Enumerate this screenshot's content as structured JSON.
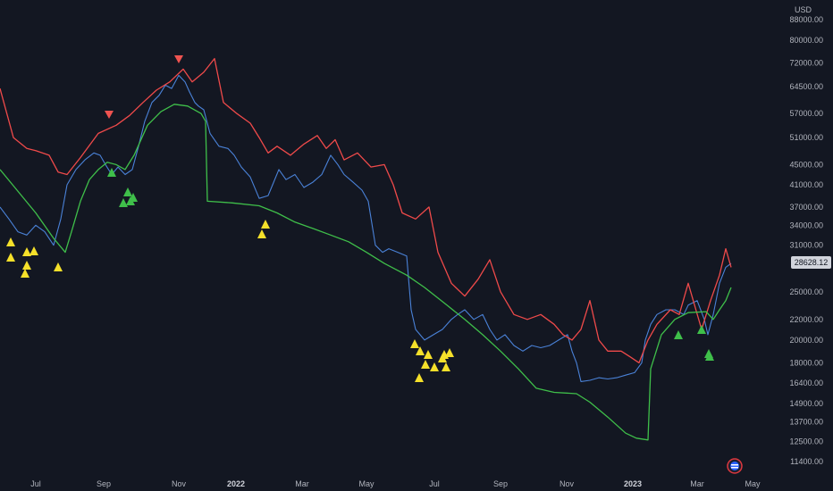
{
  "chart_data": {
    "type": "line",
    "currency": "USD",
    "last_price": "28628.12",
    "y_ticks": [
      "88000.00",
      "80000.00",
      "72000.00",
      "64500.00",
      "57000.00",
      "51000.00",
      "45000.00",
      "41000.00",
      "37000.00",
      "34000.00",
      "31000.00",
      "25000.00",
      "22000.00",
      "20000.00",
      "18000.00",
      "16400.00",
      "14900.00",
      "13700.00",
      "12500.00",
      "11400.00"
    ],
    "x_ticks": [
      "Jul",
      "Sep",
      "Nov",
      "2022",
      "Mar",
      "May",
      "Jul",
      "Sep",
      "Nov",
      "2023",
      "Mar",
      "May"
    ],
    "bold_x_ticks": [
      "2022",
      "2023"
    ],
    "colors": {
      "background": "#131722",
      "price": "#4a82d8",
      "upper_band": "#ef4a4a",
      "lower_band": "#3fbf4a",
      "buy_marker": "#f5e02a",
      "bull_marker": "#3fbf4a",
      "sell_marker": "#ef5350",
      "label_bg": "#d1d4dc"
    },
    "series": [
      {
        "role": "price",
        "points": [
          [
            0,
            37000
          ],
          [
            10,
            35000
          ],
          [
            20,
            33000
          ],
          [
            30,
            32500
          ],
          [
            40,
            34000
          ],
          [
            50,
            33000
          ],
          [
            60,
            31000
          ],
          [
            68,
            35000
          ],
          [
            75,
            41000
          ],
          [
            85,
            44000
          ],
          [
            95,
            46000
          ],
          [
            105,
            47500
          ],
          [
            112,
            47000
          ],
          [
            118,
            45000
          ],
          [
            125,
            43000
          ],
          [
            132,
            44500
          ],
          [
            140,
            43000
          ],
          [
            148,
            44000
          ],
          [
            155,
            49000
          ],
          [
            162,
            55000
          ],
          [
            170,
            60000
          ],
          [
            178,
            62000
          ],
          [
            185,
            65000
          ],
          [
            192,
            64000
          ],
          [
            200,
            68000
          ],
          [
            207,
            66000
          ],
          [
            212,
            63000
          ],
          [
            218,
            60000
          ],
          [
            222,
            59000
          ],
          [
            228,
            58000
          ],
          [
            235,
            52000
          ],
          [
            245,
            49000
          ],
          [
            255,
            48500
          ],
          [
            262,
            47000
          ],
          [
            270,
            44500
          ],
          [
            280,
            42500
          ],
          [
            290,
            38500
          ],
          [
            300,
            39000
          ],
          [
            305,
            41000
          ],
          [
            312,
            44000
          ],
          [
            320,
            42000
          ],
          [
            330,
            43000
          ],
          [
            340,
            40500
          ],
          [
            350,
            41500
          ],
          [
            360,
            43000
          ],
          [
            370,
            47000
          ],
          [
            378,
            45000
          ],
          [
            385,
            43000
          ],
          [
            395,
            41500
          ],
          [
            405,
            40000
          ],
          [
            412,
            38000
          ],
          [
            420,
            31000
          ],
          [
            428,
            30000
          ],
          [
            435,
            30500
          ],
          [
            445,
            30000
          ],
          [
            455,
            29500
          ],
          [
            460,
            23000
          ],
          [
            465,
            21000
          ],
          [
            475,
            20000
          ],
          [
            485,
            20500
          ],
          [
            495,
            21000
          ],
          [
            505,
            22000
          ],
          [
            512,
            22500
          ],
          [
            520,
            23000
          ],
          [
            530,
            22000
          ],
          [
            540,
            22500
          ],
          [
            548,
            21000
          ],
          [
            556,
            20000
          ],
          [
            565,
            20500
          ],
          [
            575,
            19500
          ],
          [
            585,
            19000
          ],
          [
            595,
            19500
          ],
          [
            605,
            19300
          ],
          [
            615,
            19500
          ],
          [
            625,
            20000
          ],
          [
            635,
            20500
          ],
          [
            640,
            19000
          ],
          [
            645,
            18000
          ],
          [
            650,
            16500
          ],
          [
            660,
            16600
          ],
          [
            670,
            16800
          ],
          [
            680,
            16700
          ],
          [
            690,
            16800
          ],
          [
            700,
            17000
          ],
          [
            710,
            17200
          ],
          [
            718,
            18000
          ],
          [
            722,
            20000
          ],
          [
            728,
            21500
          ],
          [
            735,
            22500
          ],
          [
            745,
            23000
          ],
          [
            755,
            23000
          ],
          [
            765,
            22500
          ],
          [
            770,
            23500
          ],
          [
            780,
            24000
          ],
          [
            788,
            22000
          ],
          [
            792,
            20500
          ],
          [
            798,
            22500
          ],
          [
            805,
            26000
          ],
          [
            812,
            28000
          ],
          [
            818,
            28500
          ]
        ]
      },
      {
        "role": "upper_band",
        "points": [
          [
            0,
            64000
          ],
          [
            15,
            51000
          ],
          [
            30,
            48500
          ],
          [
            40,
            48000
          ],
          [
            55,
            47000
          ],
          [
            65,
            43500
          ],
          [
            75,
            43000
          ],
          [
            90,
            46500
          ],
          [
            110,
            52000
          ],
          [
            130,
            54000
          ],
          [
            145,
            56500
          ],
          [
            160,
            60000
          ],
          [
            175,
            63500
          ],
          [
            190,
            66000
          ],
          [
            205,
            70000
          ],
          [
            215,
            66000
          ],
          [
            228,
            69000
          ],
          [
            240,
            73500
          ],
          [
            250,
            60000
          ],
          [
            265,
            57000
          ],
          [
            280,
            54500
          ],
          [
            290,
            51000
          ],
          [
            300,
            47500
          ],
          [
            310,
            49000
          ],
          [
            325,
            47000
          ],
          [
            340,
            49500
          ],
          [
            355,
            51500
          ],
          [
            365,
            48500
          ],
          [
            375,
            50500
          ],
          [
            385,
            46000
          ],
          [
            400,
            47500
          ],
          [
            415,
            44500
          ],
          [
            430,
            45000
          ],
          [
            440,
            41000
          ],
          [
            450,
            36000
          ],
          [
            465,
            35000
          ],
          [
            480,
            37000
          ],
          [
            490,
            30000
          ],
          [
            505,
            26000
          ],
          [
            520,
            24500
          ],
          [
            535,
            26500
          ],
          [
            548,
            29000
          ],
          [
            560,
            25000
          ],
          [
            575,
            22500
          ],
          [
            590,
            22000
          ],
          [
            605,
            22500
          ],
          [
            620,
            21500
          ],
          [
            630,
            20500
          ],
          [
            640,
            20000
          ],
          [
            650,
            21000
          ],
          [
            660,
            24000
          ],
          [
            670,
            20000
          ],
          [
            680,
            19000
          ],
          [
            695,
            19000
          ],
          [
            705,
            18500
          ],
          [
            715,
            18000
          ],
          [
            725,
            20000
          ],
          [
            735,
            21500
          ],
          [
            750,
            23000
          ],
          [
            760,
            22500
          ],
          [
            770,
            26000
          ],
          [
            785,
            21000
          ],
          [
            795,
            24000
          ],
          [
            805,
            27000
          ],
          [
            812,
            30500
          ],
          [
            818,
            28000
          ]
        ]
      },
      {
        "role": "lower_band",
        "points": [
          [
            0,
            44000
          ],
          [
            40,
            36000
          ],
          [
            60,
            32000
          ],
          [
            73,
            30000
          ],
          [
            80,
            33000
          ],
          [
            90,
            38000
          ],
          [
            100,
            42000
          ],
          [
            110,
            44000
          ],
          [
            120,
            45500
          ],
          [
            130,
            45000
          ],
          [
            140,
            44000
          ],
          [
            150,
            47000
          ],
          [
            165,
            54000
          ],
          [
            180,
            57500
          ],
          [
            195,
            59500
          ],
          [
            210,
            59000
          ],
          [
            225,
            57000
          ],
          [
            230,
            55000
          ],
          [
            232,
            38000
          ],
          [
            260,
            37700
          ],
          [
            290,
            37200
          ],
          [
            310,
            36000
          ],
          [
            330,
            34500
          ],
          [
            350,
            33500
          ],
          [
            370,
            32500
          ],
          [
            390,
            31500
          ],
          [
            410,
            30000
          ],
          [
            430,
            28500
          ],
          [
            455,
            27000
          ],
          [
            475,
            25500
          ],
          [
            500,
            23500
          ],
          [
            520,
            22000
          ],
          [
            540,
            20500
          ],
          [
            560,
            19000
          ],
          [
            580,
            17500
          ],
          [
            600,
            16000
          ],
          [
            620,
            15700
          ],
          [
            645,
            15600
          ],
          [
            660,
            15000
          ],
          [
            680,
            14000
          ],
          [
            700,
            13000
          ],
          [
            712,
            12700
          ],
          [
            725,
            12600
          ],
          [
            728,
            17500
          ],
          [
            740,
            20500
          ],
          [
            755,
            22000
          ],
          [
            770,
            22700
          ],
          [
            790,
            22800
          ],
          [
            798,
            22000
          ],
          [
            805,
            23000
          ],
          [
            812,
            24000
          ],
          [
            818,
            25500
          ]
        ]
      }
    ],
    "markers": {
      "buy": [
        [
          12,
          272
        ],
        [
          12,
          289
        ],
        [
          30,
          283
        ],
        [
          38,
          282
        ],
        [
          30,
          298
        ],
        [
          28,
          307
        ],
        [
          65,
          300
        ],
        [
          293,
          263
        ],
        [
          297,
          252
        ],
        [
          464,
          386
        ],
        [
          470,
          394
        ],
        [
          479,
          398
        ],
        [
          476,
          409
        ],
        [
          486,
          412
        ],
        [
          495,
          402
        ],
        [
          499,
          412
        ],
        [
          503,
          396
        ],
        [
          497,
          398
        ],
        [
          469,
          424
        ]
      ],
      "bull": [
        [
          125,
          194
        ],
        [
          143,
          216
        ],
        [
          149,
          222
        ],
        [
          138,
          228
        ],
        [
          146,
          226
        ],
        [
          759,
          376
        ],
        [
          785,
          370
        ],
        [
          793,
          397
        ],
        [
          794,
          400
        ]
      ],
      "sell": [
        [
          200,
          66
        ],
        [
          122,
          128
        ]
      ]
    }
  }
}
